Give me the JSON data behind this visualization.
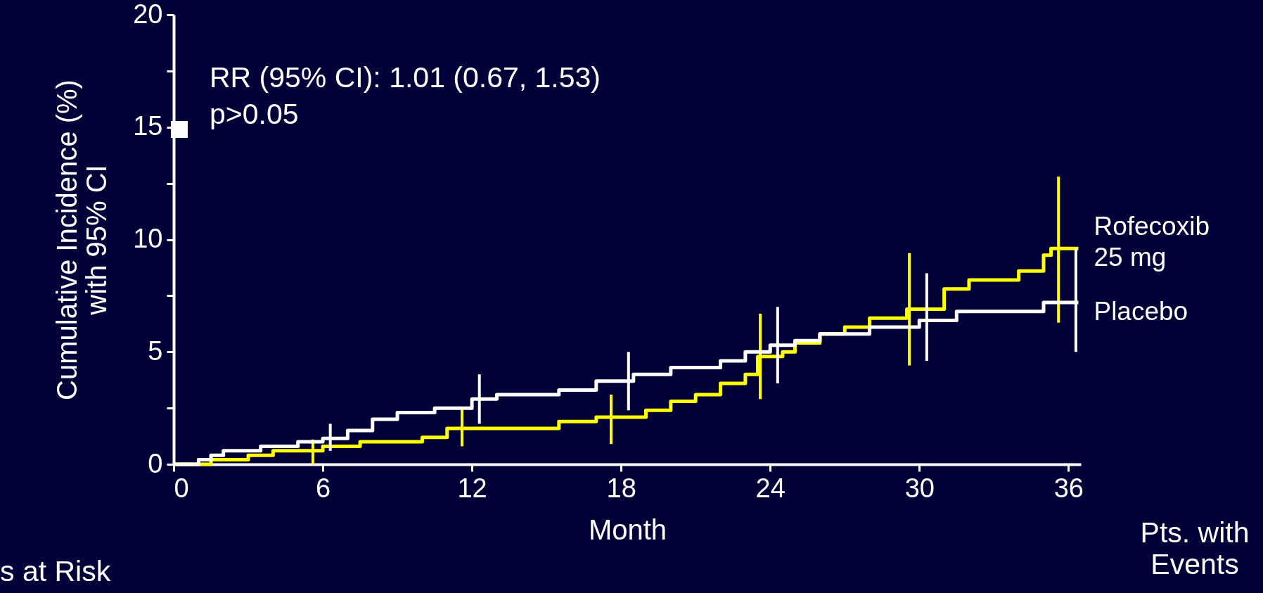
{
  "chart_data": {
    "type": "step",
    "xlabel": "Month",
    "ylabel": "Cumulative Incidence (%)\nwith 95% CI",
    "xlim": [
      0,
      36.5
    ],
    "xticks": [
      0,
      6,
      12,
      18,
      24,
      30,
      36
    ],
    "ylim": [
      0,
      20
    ],
    "yticks": [
      0,
      {
        "value": 2.5,
        "label": null
      },
      5,
      {
        "value": 7.5,
        "label": null
      },
      10,
      {
        "value": 12.5,
        "label": null
      },
      15,
      {
        "value": 17.5,
        "label": null
      },
      20
    ],
    "grid": false,
    "legend": false,
    "marker": "none",
    "line_style": "solid",
    "annotations": [
      "RR (95% CI): 1.01 (0.67, 1.53)",
      "p>0.05",
      "Pts. with\nEvents",
      "s at Risk"
    ],
    "series": [
      {
        "name": "Rofecoxib\n25 mg",
        "color": "#ffff00",
        "x": [
          0,
          1.5,
          3,
          4,
          5.6,
          6,
          7.5,
          10,
          11,
          11.6,
          15.5,
          17,
          17.6,
          19,
          20,
          21,
          22,
          23,
          23.5,
          23.6,
          24.5,
          25,
          26,
          27,
          28,
          29.5,
          29.6,
          31,
          32,
          34,
          35,
          35.3,
          35.6,
          36.4
        ],
        "values": [
          0,
          0.2,
          0.4,
          0.6,
          0.6,
          0.8,
          1.0,
          1.2,
          1.6,
          1.6,
          1.9,
          2.1,
          2.1,
          2.4,
          2.8,
          3.1,
          3.6,
          4.0,
          4.8,
          4.8,
          5.0,
          5.4,
          5.8,
          6.1,
          6.5,
          6.9,
          6.9,
          7.8,
          8.2,
          8.6,
          9.3,
          9.6,
          9.6,
          9.6
        ],
        "errors": [
          null,
          null,
          null,
          null,
          [
            0,
            1.1
          ],
          null,
          null,
          null,
          null,
          [
            0.8,
            2.5
          ],
          null,
          null,
          [
            0.9,
            3.1
          ],
          null,
          null,
          null,
          null,
          null,
          null,
          [
            2.9,
            6.7
          ],
          null,
          null,
          null,
          null,
          null,
          null,
          [
            4.4,
            9.4
          ],
          null,
          null,
          null,
          null,
          null,
          [
            6.3,
            12.8
          ],
          null
        ]
      },
      {
        "name": "Placebo",
        "color": "#ffffff",
        "x": [
          0,
          1,
          1.5,
          2,
          3.5,
          5,
          6,
          6.3,
          7,
          8,
          9,
          10.5,
          12,
          12.3,
          13,
          15.5,
          17,
          18.3,
          18.5,
          20,
          22,
          23,
          24,
          24.3,
          25,
          26,
          28,
          30,
          30.3,
          31.5,
          35,
          36.3,
          36.4
        ],
        "values": [
          0,
          0.2,
          0.4,
          0.6,
          0.8,
          1.0,
          1.15,
          1.15,
          1.5,
          2.0,
          2.3,
          2.5,
          2.9,
          2.9,
          3.1,
          3.3,
          3.7,
          3.7,
          4.0,
          4.3,
          4.6,
          5.0,
          5.3,
          5.3,
          5.5,
          5.8,
          6.1,
          6.4,
          6.4,
          6.8,
          7.2,
          7.2,
          7.2
        ],
        "errors": [
          null,
          null,
          null,
          null,
          null,
          null,
          null,
          [
            0.6,
            1.8
          ],
          null,
          null,
          null,
          null,
          null,
          [
            1.8,
            4.0
          ],
          null,
          null,
          null,
          [
            2.4,
            5.0
          ],
          null,
          null,
          null,
          null,
          null,
          [
            3.6,
            7.0
          ],
          null,
          null,
          null,
          null,
          [
            4.6,
            8.5
          ],
          null,
          null,
          [
            5.0,
            9.6
          ],
          null
        ]
      }
    ]
  }
}
